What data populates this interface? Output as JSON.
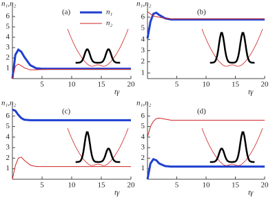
{
  "chart_data": [
    {
      "type": "line",
      "title": "(a)",
      "ylabel": "n₁,n₂",
      "xlabel": "tγ",
      "x": [
        0,
        0.5,
        1,
        1.5,
        2,
        3,
        4,
        5,
        6,
        8,
        10,
        12,
        14,
        16,
        18,
        20
      ],
      "series": [
        {
          "name": "n₁",
          "color": "#1f3fd0",
          "width": 3,
          "values": [
            0,
            2.3,
            2.8,
            2.6,
            2.1,
            1.3,
            1.0,
            0.95,
            0.95,
            0.95,
            0.95,
            0.95,
            0.95,
            0.95,
            0.95,
            0.95
          ]
        },
        {
          "name": "n₂",
          "color": "#d02020",
          "width": 1,
          "values": [
            0,
            1.2,
            1.4,
            1.25,
            1.05,
            0.85,
            0.85,
            0.88,
            0.9,
            0.9,
            0.9,
            0.9,
            0.9,
            0.9,
            0.9,
            0.9
          ]
        }
      ],
      "xlim": [
        0,
        20
      ],
      "xticks": [
        5,
        10,
        15,
        20
      ],
      "ylim": [
        0,
        6.8
      ],
      "yticks": [
        1,
        2,
        3,
        4,
        5,
        6
      ]
    },
    {
      "type": "line",
      "title": "(b)",
      "ylabel": "n₁,n₂",
      "xlabel": "tγ",
      "x": [
        0,
        0.5,
        1,
        1.5,
        2,
        3,
        4,
        5,
        6,
        8,
        10,
        12,
        14,
        16,
        18,
        20
      ],
      "series": [
        {
          "color": "#1f3fd0",
          "width": 3,
          "values": [
            4.1,
            5.6,
            6.3,
            6.4,
            6.2,
            5.9,
            5.8,
            5.8,
            5.8,
            5.8,
            5.8,
            5.8,
            5.8,
            5.8,
            5.8,
            5.8
          ]
        },
        {
          "color": "#d02020",
          "width": 1,
          "values": [
            6.5,
            6.3,
            6.1,
            6.05,
            6.0,
            5.9,
            5.85,
            5.85,
            5.85,
            5.85,
            5.85,
            5.85,
            5.85,
            5.85,
            5.85,
            5.85
          ]
        }
      ],
      "xlim": [
        0,
        20
      ],
      "xticks": [
        5,
        10,
        15,
        20
      ],
      "ylim": [
        0.5,
        6.8
      ],
      "yticks": [
        1,
        2,
        3,
        4,
        5,
        6
      ]
    },
    {
      "type": "line",
      "title": "(c)",
      "ylabel": "n₁,n₂",
      "xlabel": "tγ",
      "x": [
        0,
        0.5,
        1,
        1.5,
        2,
        3,
        4,
        5,
        6,
        8,
        10,
        12,
        14,
        16,
        18,
        20
      ],
      "series": [
        {
          "color": "#1f3fd0",
          "width": 3,
          "values": [
            6.6,
            6.5,
            6.1,
            5.8,
            5.65,
            5.6,
            5.6,
            5.6,
            5.6,
            5.6,
            5.6,
            5.6,
            5.6,
            5.6,
            5.6,
            5.6
          ]
        },
        {
          "color": "#d02020",
          "width": 1,
          "values": [
            0,
            1.3,
            2.0,
            2.1,
            1.8,
            1.35,
            1.2,
            1.2,
            1.2,
            1.2,
            1.2,
            1.2,
            1.2,
            1.2,
            1.2,
            1.2
          ]
        }
      ],
      "xlim": [
        0,
        20
      ],
      "xticks": [
        5,
        10,
        15,
        20
      ],
      "ylim": [
        0,
        6.8
      ],
      "yticks": [
        1,
        2,
        3,
        4,
        5,
        6
      ]
    },
    {
      "type": "line",
      "title": "(d)",
      "ylabel": "n₁,n₂",
      "xlabel": "tγ",
      "x": [
        0,
        0.5,
        1,
        1.5,
        2,
        3,
        4,
        5,
        6,
        8,
        10,
        12,
        14,
        16,
        18,
        20
      ],
      "series": [
        {
          "color": "#1f3fd0",
          "width": 3,
          "values": [
            0,
            1.5,
            1.9,
            1.8,
            1.5,
            1.25,
            1.2,
            1.2,
            1.2,
            1.2,
            1.2,
            1.2,
            1.2,
            1.2,
            1.2,
            1.2
          ]
        },
        {
          "color": "#d02020",
          "width": 1,
          "values": [
            4.0,
            5.0,
            5.5,
            5.75,
            5.8,
            5.7,
            5.6,
            5.6,
            5.6,
            5.6,
            5.6,
            5.6,
            5.6,
            5.6,
            5.6,
            5.6
          ]
        }
      ],
      "xlim": [
        0,
        20
      ],
      "xticks": [
        5,
        10,
        15,
        20
      ],
      "ylim": [
        0,
        6.8
      ],
      "yticks": [
        1,
        2,
        3,
        4,
        5,
        6
      ]
    }
  ]
}
